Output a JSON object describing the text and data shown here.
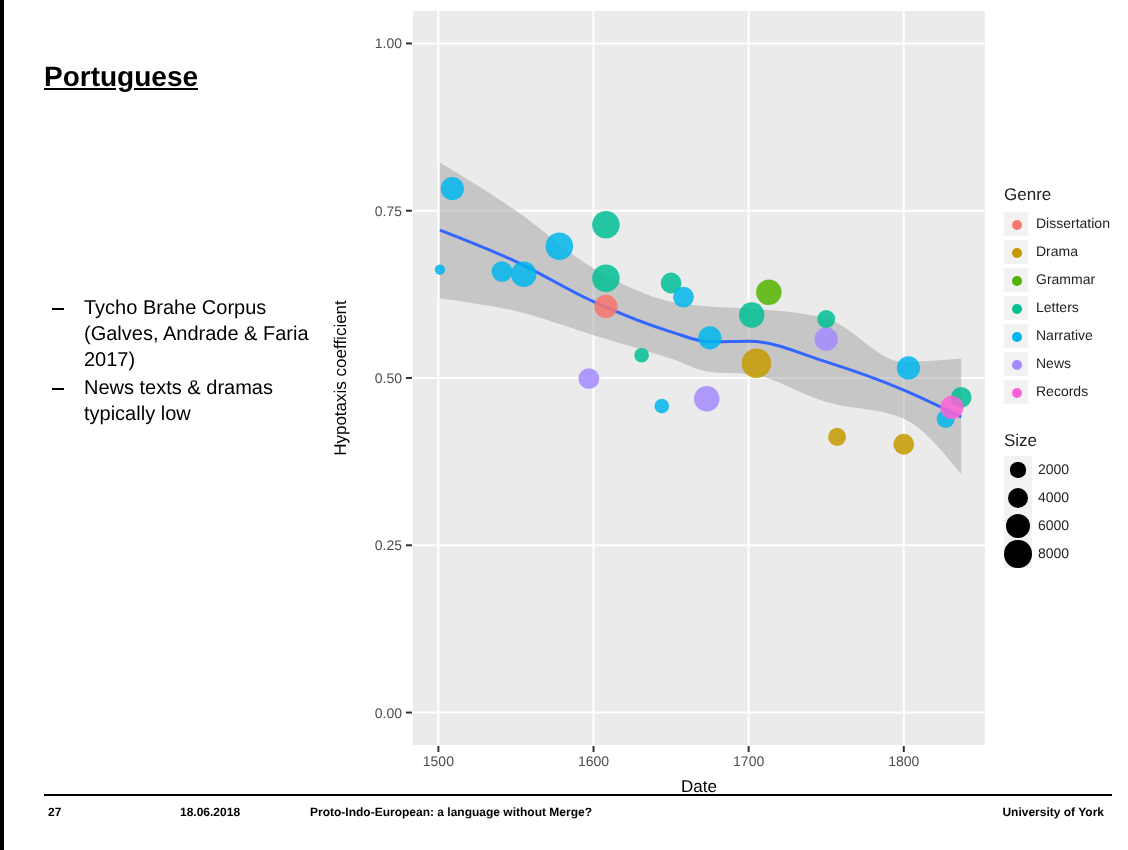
{
  "chart_data": {
    "type": "bubble",
    "title": "Portuguese",
    "xlabel": "Date",
    "ylabel": "Hypotaxis coefficient",
    "legend_title": "Genre",
    "xlim": [
      1483,
      1853
    ],
    "xticks": [
      1500,
      1600,
      1700,
      1800
    ],
    "ylim": [
      -0.05,
      1.05
    ],
    "yticks": [
      {
        "value": 0,
        "label": "0.00"
      },
      {
        "value": 0.25,
        "label": "0.25"
      },
      {
        "value": 0.5,
        "label": "0.50"
      },
      {
        "value": 0.75,
        "label": "0.75"
      },
      {
        "value": 1,
        "label": "1.00"
      }
    ],
    "grid": true,
    "legend": "right",
    "size_legend": [
      2000,
      4000,
      6000,
      8000
    ],
    "series": [
      {
        "name": "Dissertation",
        "color": "#f8766d",
        "x": [
          1608
        ],
        "values": [
          0.607
        ],
        "sizes": [
          5000
        ]
      },
      {
        "name": "Drama",
        "color": "#c49a00",
        "x": [
          1705,
          1757,
          1800
        ],
        "values": [
          0.522,
          0.412,
          0.401
        ],
        "sizes": [
          8000,
          3000,
          4000
        ]
      },
      {
        "name": "Grammar",
        "color": "#53b400",
        "x": [
          1713
        ],
        "values": [
          0.628
        ],
        "sizes": [
          6000
        ]
      },
      {
        "name": "Letters",
        "color": "#00c094",
        "x": [
          1608,
          1608,
          1631,
          1650,
          1702,
          1750,
          1837
        ],
        "values": [
          0.729,
          0.649,
          0.534,
          0.642,
          0.594,
          0.588,
          0.471
        ],
        "sizes": [
          7000,
          7000,
          2000,
          4000,
          6000,
          3000,
          4000
        ]
      },
      {
        "name": "Narrative",
        "color": "#00b6eb",
        "x": [
          1501,
          1509,
          1541,
          1555,
          1578,
          1644,
          1658,
          1675,
          1803,
          1827
        ],
        "values": [
          0.662,
          0.783,
          0.659,
          0.655,
          0.697,
          0.458,
          0.621,
          0.56,
          0.515,
          0.439
        ],
        "sizes": [
          1000,
          5000,
          4000,
          6000,
          7000,
          2000,
          4000,
          5000,
          5000,
          3000
        ]
      },
      {
        "name": "News",
        "color": "#a58aff",
        "x": [
          1597,
          1673,
          1750
        ],
        "values": [
          0.499,
          0.469,
          0.558
        ],
        "sizes": [
          4000,
          6000,
          5000
        ]
      },
      {
        "name": "Records",
        "color": "#fb61d7",
        "x": [
          1831
        ],
        "values": [
          0.456
        ],
        "sizes": [
          5000
        ]
      },
      {
        "type": "line",
        "color": "#3366ff",
        "x": [
          1501,
          1550,
          1600,
          1650,
          1675,
          1700,
          1750,
          1800,
          1837
        ],
        "values": [
          0.721,
          0.674,
          0.614,
          0.569,
          0.554,
          0.555,
          0.524,
          0.482,
          0.442
        ],
        "lower": [
          0.619,
          0.6,
          0.564,
          0.529,
          0.509,
          0.506,
          0.464,
          0.439,
          0.356
        ],
        "upper": [
          0.822,
          0.75,
          0.664,
          0.614,
          0.607,
          0.604,
          0.589,
          0.524,
          0.529
        ]
      }
    ],
    "annotations": [
      "Tycho Brahe Corpus (Galves, Andrade & Faria 2017)",
      "News texts & dramas typically low",
      "Size",
      "27",
      "18.06.2018",
      "Proto-Indo-European: a language without Merge?",
      "University of York"
    ]
  }
}
